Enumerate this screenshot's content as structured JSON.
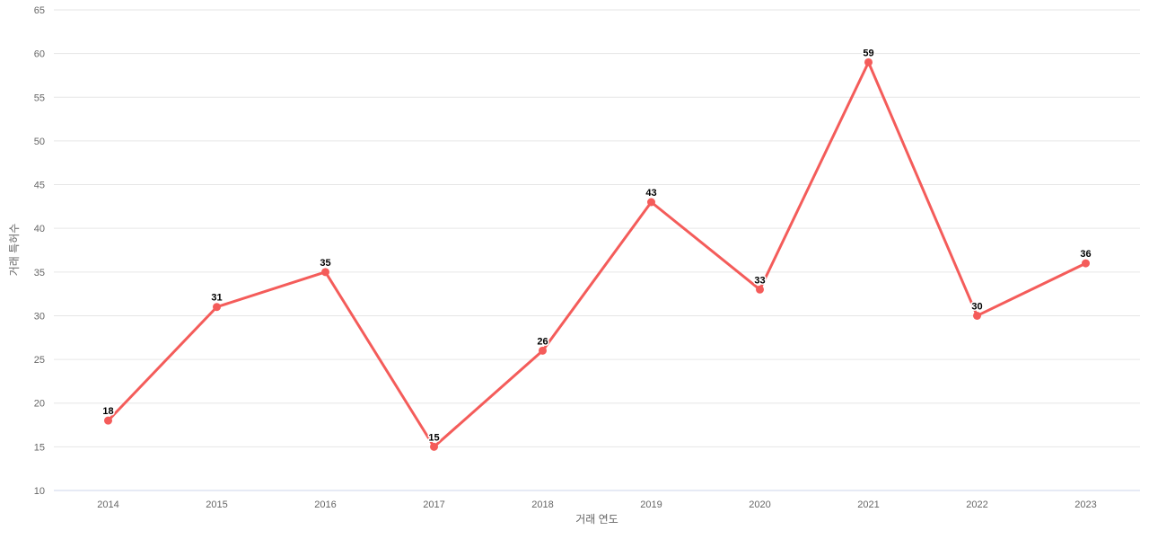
{
  "chart_data": {
    "type": "line",
    "title": "",
    "xlabel": "거래 연도",
    "ylabel": "거래 특허수",
    "categories": [
      "2014",
      "2015",
      "2016",
      "2017",
      "2018",
      "2019",
      "2020",
      "2021",
      "2022",
      "2023"
    ],
    "series": [
      {
        "name": "",
        "values": [
          18,
          31,
          35,
          15,
          26,
          43,
          33,
          59,
          30,
          36
        ]
      }
    ],
    "data_labels": [
      18,
      31,
      35,
      15,
      26,
      43,
      33,
      59,
      30,
      36
    ],
    "ylim": [
      10,
      65
    ],
    "y_ticks": [
      10,
      15,
      20,
      25,
      30,
      35,
      40,
      45,
      50,
      55,
      60,
      65
    ],
    "grid": "horizontal",
    "legend_position": "none",
    "colors": {
      "line": "#f45c5a",
      "point": "#f45c5a",
      "grid_line": "#e6e6e6",
      "axis_line": "#ccd6eb",
      "tick_label": "#666666",
      "axis_title": "#666666",
      "data_label": "#000000",
      "background": "#ffffff"
    }
  }
}
